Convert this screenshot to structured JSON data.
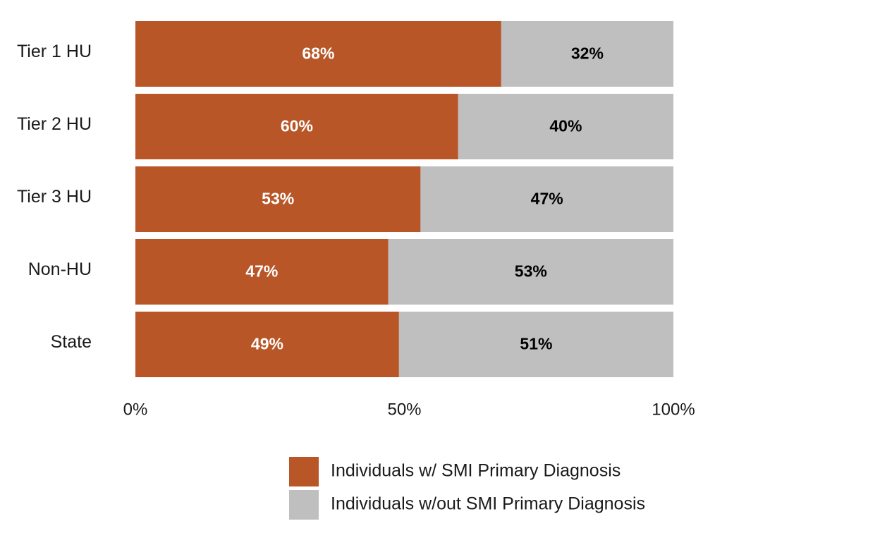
{
  "chart_data": {
    "type": "bar",
    "orientation": "horizontal",
    "stacked": true,
    "categories": [
      "Tier 1 HU",
      "Tier 2 HU",
      "Tier 3 HU",
      "Non-HU",
      "State"
    ],
    "series": [
      {
        "name": "Individuals w/ SMI Primary Diagnosis",
        "values": [
          68,
          60,
          53,
          47,
          49
        ],
        "labels": [
          "68%",
          "60%",
          "53%",
          "47%",
          "49%"
        ],
        "color": "#b85628",
        "label_color": "#ffffff"
      },
      {
        "name": "Individuals w/out SMI Primary Diagnosis",
        "values": [
          32,
          40,
          47,
          53,
          51
        ],
        "labels": [
          "32%",
          "40%",
          "47%",
          "53%",
          "51%"
        ],
        "color": "#bfbfbf",
        "label_color": "#000000"
      }
    ],
    "xlim": [
      0,
      100
    ],
    "x_ticks": [
      0,
      50,
      100
    ],
    "x_tick_labels": [
      "0%",
      "50%",
      "100%"
    ],
    "grid": false,
    "legend_position": "bottom"
  }
}
